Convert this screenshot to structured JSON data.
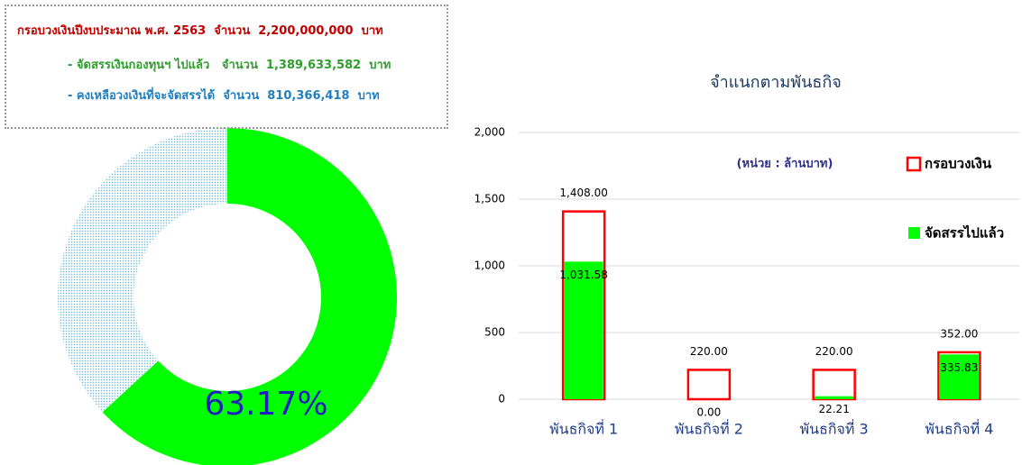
{
  "header": {
    "lines": [
      {
        "text": "กรอบวงเงินปีงบประมาณ พ.ศ. 2563  จำนวน  2,200,000,000  บาท",
        "color": "#c00000"
      },
      {
        "text": "- จัดสรรเงินกองทุนฯ ไปแล้ว   จำนวน  1,389,633,582  บาท",
        "color": "#2e9e2e"
      },
      {
        "text": "- คงเหลือวงเงินที่จะจัดสรรได้  จำนวน  810,366,418  บาท",
        "color": "#1f7fc0"
      }
    ]
  },
  "chart_data": [
    {
      "type": "pie",
      "donut": true,
      "values": [
        63.17,
        36.83
      ],
      "value_labels": [
        "63.17%",
        null
      ],
      "colors": [
        "#00ff00",
        "#bfe3f2"
      ],
      "label_color": "#1f1fbf"
    },
    {
      "type": "bar",
      "title": "จำแนกตามพันธกิจ",
      "subtitle": "(หน่วย : ล้านบาท)",
      "categories": [
        "พันธกิจที่ 1",
        "พันธกิจที่ 2",
        "พันธกิจที่ 3",
        "พันธกิจที่ 4"
      ],
      "series": [
        {
          "name": "กรอบวงเงิน",
          "color": "#ff0000",
          "style": "outline",
          "values": [
            1408,
            220,
            220,
            352
          ],
          "value_labels": [
            "1,408.00",
            "220.00",
            "220.00",
            "352.00"
          ]
        },
        {
          "name": "จัดสรรไปแล้ว",
          "color": "#00ff00",
          "style": "fill",
          "values": [
            1031.58,
            0,
            22.21,
            335.83
          ],
          "value_labels": [
            "1,031.58",
            "0.00",
            "22.21",
            "335.83"
          ]
        }
      ],
      "ylim": [
        0,
        2000
      ],
      "yticks": [
        0,
        500,
        {
          "value": 1000,
          "label": "1,000"
        },
        {
          "value": 1500,
          "label": "1,500"
        },
        {
          "value": 2000,
          "label": "2,000"
        }
      ],
      "grid": true,
      "legend": "upper right",
      "overlap": true
    }
  ]
}
